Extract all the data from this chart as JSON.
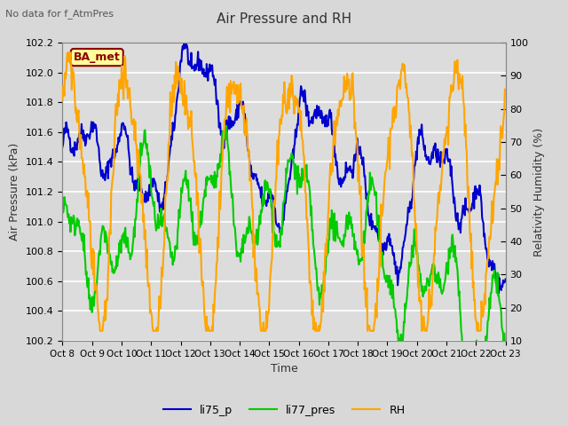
{
  "title": "Air Pressure and RH",
  "subtitle": "No data for f_AtmPres",
  "xlabel": "Time",
  "ylabel_left": "Air Pressure (kPa)",
  "ylabel_right": "Relativity Humidity (%)",
  "legend_labels": [
    "li75_p",
    "li77_pres",
    "RH"
  ],
  "line_colors": [
    "#0000cc",
    "#00cc00",
    "#ffa500"
  ],
  "ylim_left": [
    100.2,
    102.2
  ],
  "ylim_right": [
    10,
    100
  ],
  "yticks_left": [
    100.2,
    100.4,
    100.6,
    100.8,
    101.0,
    101.2,
    101.4,
    101.6,
    101.8,
    102.0,
    102.2
  ],
  "yticks_right": [
    10,
    20,
    30,
    40,
    50,
    60,
    70,
    80,
    90,
    100
  ],
  "xtick_labels": [
    "Oct 8",
    "Oct 9",
    "Oct 10",
    "Oct 11",
    "Oct 12",
    "Oct 13",
    "Oct 14",
    "Oct 15",
    "Oct 16",
    "Oct 17",
    "Oct 18",
    "Oct 19",
    "Oct 20",
    "Oct 21",
    "Oct 22",
    "Oct 23"
  ],
  "fig_facecolor": "#d8d8d8",
  "plot_bg_color": "#dcdcdc",
  "grid_color": "#ffffff",
  "badge_text": "BA_met",
  "badge_facecolor": "#ffff99",
  "badge_edgecolor": "#8b0000",
  "linewidth": 1.5
}
